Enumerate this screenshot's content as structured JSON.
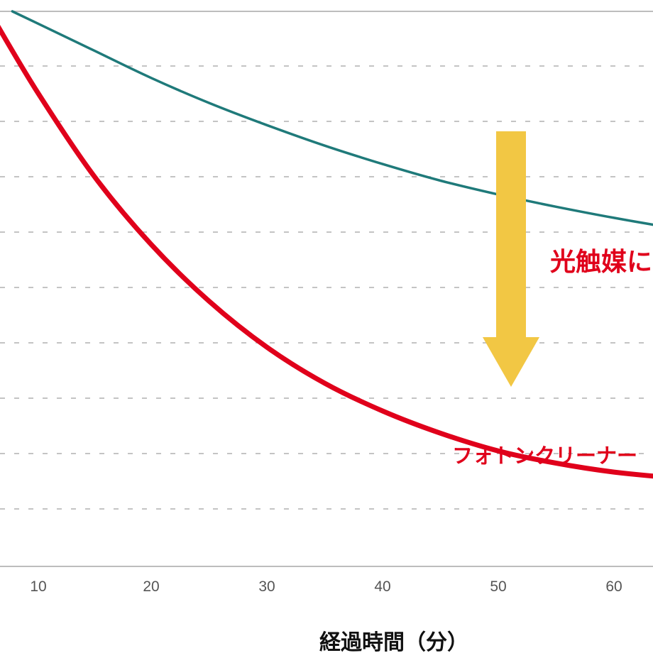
{
  "chart_data": {
    "type": "line",
    "title": "",
    "xlabel": "経過時間（分）",
    "ylabel": "",
    "x_ticks": [
      10,
      20,
      30,
      40,
      50,
      60
    ],
    "xlim": [
      6,
      70
    ],
    "ylim": [
      0,
      10
    ],
    "grid": "horizontal dashed",
    "series": [
      {
        "color": "#1f7a7a",
        "x": [
          8,
          10,
          15,
          20,
          25,
          30,
          35,
          40,
          45,
          50,
          55,
          60,
          65,
          69.5
        ],
        "y": [
          10,
          9.8,
          9.3,
          8.8,
          8.35,
          7.95,
          7.58,
          7.25,
          6.95,
          6.7,
          6.48,
          6.28,
          6.1,
          5.95
        ]
      },
      {
        "color": "#e0001b",
        "x": [
          6,
          10,
          15,
          20,
          25,
          30,
          35,
          40,
          45,
          50,
          55,
          60,
          65,
          69.5
        ],
        "y": [
          10,
          8.6,
          7.05,
          5.8,
          4.78,
          3.95,
          3.3,
          2.8,
          2.4,
          2.08,
          1.86,
          1.7,
          1.6,
          1.55
        ]
      }
    ],
    "annotations": {
      "arrow_color": "#f2c744",
      "reduction_label": "光触媒に",
      "series_label": "フォトンクリーナー"
    }
  }
}
